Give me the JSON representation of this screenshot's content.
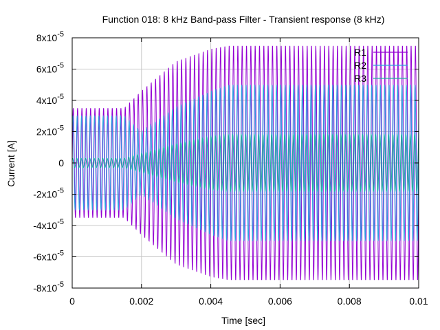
{
  "chart_data": {
    "type": "line",
    "title": "Function 018: 8 kHz Band-pass Filter - Transient response (8 kHz)",
    "xlabel": "Time [sec]",
    "ylabel": "Current [A]",
    "xlim": [
      0,
      0.01
    ],
    "ylim": [
      -8e-05,
      8e-05
    ],
    "grid": true,
    "legend_position": "top-right",
    "x_ticks": [
      {
        "value": 0,
        "label": "0"
      },
      {
        "value": 0.002,
        "label": "0.002"
      },
      {
        "value": 0.004,
        "label": "0.004"
      },
      {
        "value": 0.006,
        "label": "0.006"
      },
      {
        "value": 0.008,
        "label": "0.008"
      },
      {
        "value": 0.01,
        "label": "0.01"
      }
    ],
    "y_ticks": [
      {
        "value": 8e-05,
        "mantissa": "8x10",
        "exp": "-5"
      },
      {
        "value": 6e-05,
        "mantissa": "6x10",
        "exp": "-5"
      },
      {
        "value": 4e-05,
        "mantissa": "4x10",
        "exp": "-5"
      },
      {
        "value": 2e-05,
        "mantissa": "2x10",
        "exp": "-5"
      },
      {
        "value": 0,
        "mantissa": "0",
        "exp": ""
      },
      {
        "value": -2e-05,
        "mantissa": "-2x10",
        "exp": "-5"
      },
      {
        "value": -4e-05,
        "mantissa": "-4x10",
        "exp": "-5"
      },
      {
        "value": -6e-05,
        "mantissa": "-6x10",
        "exp": "-5"
      },
      {
        "value": -8e-05,
        "mantissa": "-8x10",
        "exp": "-5"
      }
    ],
    "series": [
      {
        "name": "R1",
        "color": "#9400d3",
        "frequency_hz": 8000,
        "envelope": {
          "t": [
            0,
            0.0015,
            0.002,
            0.003,
            0.004,
            0.0045,
            0.01
          ],
          "amplitude": [
            3.5e-05,
            3.5e-05,
            4.6e-05,
            6.5e-05,
            7.3e-05,
            7.5e-05,
            7.5e-05
          ]
        }
      },
      {
        "name": "R2",
        "color": "#2ca0e0",
        "frequency_hz": 8000,
        "envelope": {
          "t": [
            0,
            0.0015,
            0.002,
            0.003,
            0.004,
            0.0045,
            0.01
          ],
          "amplitude": [
            3e-05,
            3e-05,
            2e-05,
            3.6e-05,
            4.6e-05,
            5e-05,
            5e-05
          ]
        }
      },
      {
        "name": "R3",
        "color": "#20b0a0",
        "frequency_hz": 8000,
        "envelope": {
          "t": [
            0,
            0.0015,
            0.002,
            0.003,
            0.004,
            0.0045,
            0.01
          ],
          "amplitude": [
            3e-06,
            3e-06,
            6e-06,
            1.2e-05,
            1.7e-05,
            1.8e-05,
            1.8e-05
          ]
        }
      }
    ]
  }
}
